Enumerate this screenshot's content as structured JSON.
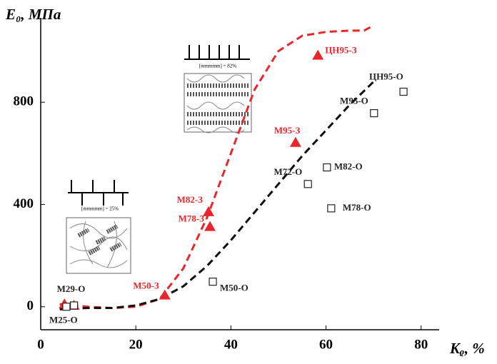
{
  "chart_data": {
    "type": "scatter",
    "y_label": "E₀, МПа",
    "x_label": "Kᵨ, %",
    "xlim": [
      0,
      83.8
    ],
    "ylim": [
      -90,
      1130
    ],
    "xticks": [
      0,
      20,
      40,
      60,
      80
    ],
    "yticks": [
      0,
      400,
      800
    ],
    "series": [
      {
        "color": "#e8262b",
        "marker": "triangle",
        "x": [
          58.3,
          53.6,
          35.3,
          35.6,
          26.1,
          5,
          7
        ],
        "y": [
          983,
          642,
          371,
          313,
          45,
          10,
          5
        ],
        "labels": [
          "ЦН95-З",
          "М95-З",
          "М82-З",
          "М78-З",
          "М50-З",
          null,
          null
        ]
      },
      {
        "color": "#222222",
        "marker": "square",
        "x": [
          76.3,
          70.1,
          60.2,
          56.2,
          61.1,
          36.2,
          7,
          5.4
        ],
        "y": [
          841,
          757,
          545,
          480,
          385,
          98,
          5,
          0
        ],
        "labels": [
          "ЦН95-О",
          "М95-О",
          "М82-О",
          "М72-О",
          "М78-О",
          "М50-О",
          "M29-O",
          "M25-O"
        ]
      }
    ],
    "curves": [
      {
        "color": "#e8262b",
        "style": "dashed",
        "x": [
          4,
          10,
          15,
          20,
          25,
          30,
          35,
          40,
          45,
          50,
          55,
          60,
          65,
          68,
          70
        ],
        "y": [
          10,
          0,
          -5,
          0,
          30,
          150,
          350,
          600,
          850,
          1000,
          1060,
          1075,
          1080,
          1080,
          1100
        ]
      },
      {
        "color": "#111111",
        "style": "dashed",
        "x": [
          4,
          10,
          15,
          20,
          25,
          30,
          35,
          40,
          45,
          50,
          55,
          60,
          65,
          70
        ],
        "y": [
          -10,
          -5,
          -5,
          5,
          30,
          80,
          160,
          260,
          370,
          480,
          590,
          690,
          790,
          880
        ]
      }
    ],
    "annotations": [
      "[mmmmm] = 82%",
      "[mmmmm] = 25%"
    ]
  }
}
